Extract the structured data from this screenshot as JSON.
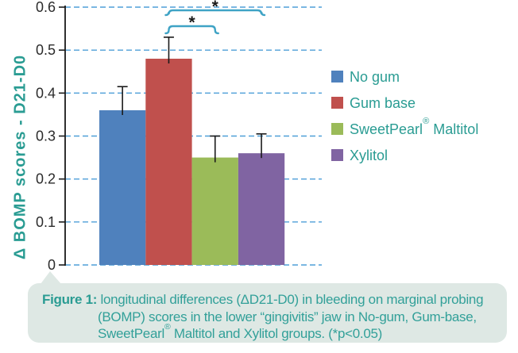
{
  "chart_data": {
    "type": "bar",
    "title": "",
    "ylabel": "Δ BOMP scores - D21-D0",
    "xlabel": "",
    "categories": [
      "No gum",
      "Gum base",
      "SweetPearl® Maltitol",
      "Xylitol"
    ],
    "values": [
      0.36,
      0.48,
      0.25,
      0.26
    ],
    "errors_upper": [
      0.055,
      0.05,
      0.05,
      0.045
    ],
    "bar_colors": [
      "#4F81BD",
      "#C0504D",
      "#9BBB59",
      "#8064A2"
    ],
    "ylim": [
      0,
      0.6
    ],
    "yticks": [
      0,
      0.1,
      0.2,
      0.3,
      0.4,
      0.5,
      0.6
    ],
    "ytick_labels": [
      "0",
      "0.1",
      "0.2",
      "0.3",
      "0.4",
      "0.5",
      "0.6"
    ],
    "grid": "horizontal-dashed",
    "legend_position": "right-middle",
    "significance_brackets": [
      {
        "from": "Gum base",
        "to": "SweetPearl® Maltitol",
        "label": "*"
      },
      {
        "from": "Gum base",
        "to": "Xylitol",
        "label": "*"
      }
    ]
  },
  "caption": {
    "figure_label": "Figure 1:",
    "line1": " longitudinal differences (ΔD21-D0) in bleeding on marginal probing",
    "line2": "(BOMP) scores in the lower “gingivitis” jaw in No-gum, Gum-base,",
    "line3": "SweetPearl® Maltitol and Xylitol groups. (*p<0.05)"
  },
  "colors": {
    "teal_text": "#2A9C93",
    "caption_teal": "#32A099",
    "grid_blue": "#4E9FD8",
    "bracket_blue": "#3FA3C5",
    "caption_background": "#DEE8E4",
    "axis_black": "#1A1A1A",
    "tick_label": "#2B2B2B"
  }
}
